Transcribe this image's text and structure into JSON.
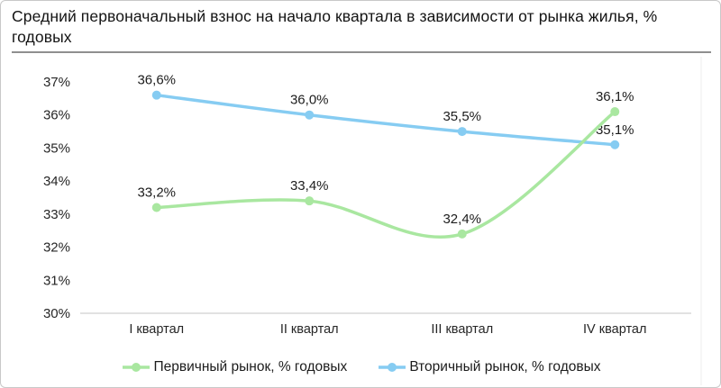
{
  "header": {
    "title": "Средний первоначальный взнос на начало квартала в зависимости от рынка жилья, % годовых"
  },
  "chart_data": {
    "type": "line",
    "title": "Средний первоначальный взнос на начало квартала в зависимости от рынка жилья, % годовых",
    "categories": [
      "I квартал",
      "II квартал",
      "III квартал",
      "IV квартал"
    ],
    "series": [
      {
        "name": "Первичный рынок, % годовых",
        "color": "#a9e7a0",
        "values": [
          33.2,
          33.4,
          32.4,
          36.1
        ],
        "labels": [
          "33,2%",
          "33,4%",
          "32,4%",
          "36,1%"
        ]
      },
      {
        "name": "Вторичный рынок, % годовых",
        "color": "#86ccf2",
        "values": [
          36.6,
          36.0,
          35.5,
          35.1
        ],
        "labels": [
          "36,6%",
          "36,0%",
          "35,5%",
          "35,1%"
        ]
      }
    ],
    "y_axis": {
      "min": 30,
      "max": 37,
      "tick_step": 1,
      "tick_labels": [
        "30%",
        "31%",
        "32%",
        "33%",
        "34%",
        "35%",
        "36%",
        "37%"
      ]
    },
    "grid": "baseline-only",
    "legend_position": "bottom"
  },
  "colors": {
    "primary_series": "#a9e7a0",
    "secondary_series": "#86ccf2",
    "baseline": "#e2e2e2",
    "divider": "#8f8f8f",
    "text": "#1c1c1c",
    "border": "#c8c8c8"
  }
}
